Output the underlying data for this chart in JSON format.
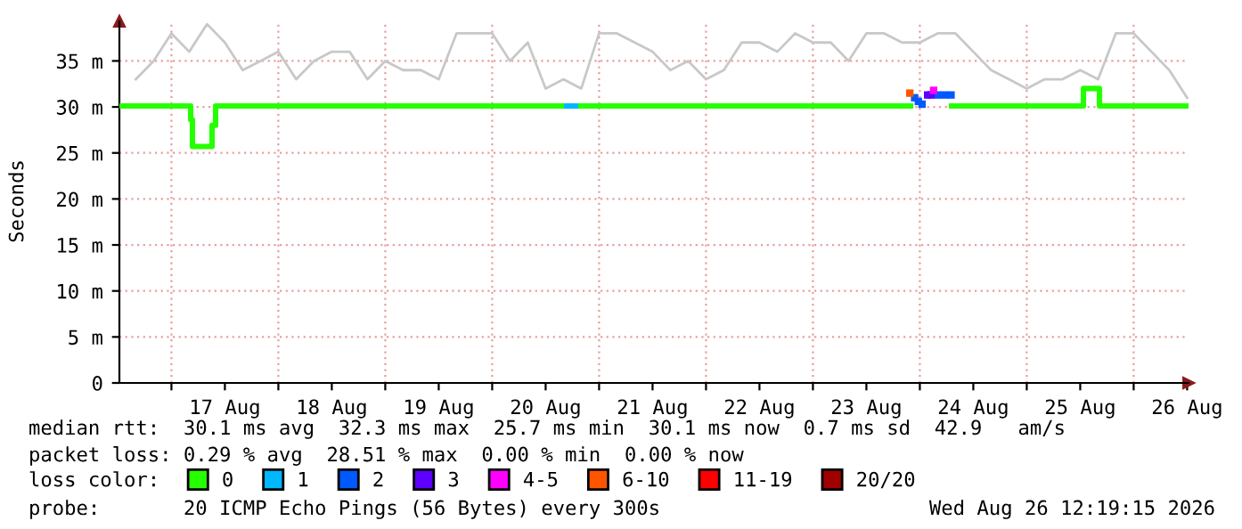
{
  "chart_data": {
    "type": "step",
    "ylabel": "Seconds",
    "xlim": [
      "2026-08-16T12:19",
      "2026-08-26T12:19"
    ],
    "xticks": [
      {
        "value": "2026-08-17T00:00",
        "label": null
      },
      {
        "value": "2026-08-17T12:00",
        "label": "17 Aug"
      },
      {
        "value": "2026-08-18T00:00",
        "label": null
      },
      {
        "value": "2026-08-18T12:00",
        "label": "18 Aug"
      },
      {
        "value": "2026-08-19T00:00",
        "label": null
      },
      {
        "value": "2026-08-19T12:00",
        "label": "19 Aug"
      },
      {
        "value": "2026-08-20T00:00",
        "label": null
      },
      {
        "value": "2026-08-20T12:00",
        "label": "20 Aug"
      },
      {
        "value": "2026-08-21T00:00",
        "label": null
      },
      {
        "value": "2026-08-21T12:00",
        "label": "21 Aug"
      },
      {
        "value": "2026-08-22T00:00",
        "label": null
      },
      {
        "value": "2026-08-22T12:00",
        "label": "22 Aug"
      },
      {
        "value": "2026-08-23T00:00",
        "label": null
      },
      {
        "value": "2026-08-23T12:00",
        "label": "23 Aug"
      },
      {
        "value": "2026-08-24T00:00",
        "label": null
      },
      {
        "value": "2026-08-24T12:00",
        "label": "24 Aug"
      },
      {
        "value": "2026-08-25T00:00",
        "label": null
      },
      {
        "value": "2026-08-25T12:00",
        "label": "25 Aug"
      },
      {
        "value": "2026-08-26T00:00",
        "label": null
      },
      {
        "value": "2026-08-26T12:00",
        "label": "26 Aug"
      }
    ],
    "ylim": [
      0,
      39.3
    ],
    "yticks": [
      0,
      {
        "value": 5,
        "label": "5 m"
      },
      {
        "value": 10,
        "label": "10 m"
      },
      {
        "value": 15,
        "label": "15 m"
      },
      {
        "value": 20,
        "label": "20 m"
      },
      {
        "value": 25,
        "label": "25 m"
      },
      {
        "value": 30,
        "label": "30 m"
      },
      {
        "value": 35,
        "label": "35 m"
      }
    ],
    "grid": true,
    "legend": "bottom",
    "legend_title": "loss color:",
    "series": [
      {
        "type": "line",
        "color": "#c8c8c8",
        "x": [
          "2026-08-16T16:00",
          "2026-08-16T20:00",
          "2026-08-17T00:00",
          "2026-08-17T04:00",
          "2026-08-17T08:00",
          "2026-08-17T12:00",
          "2026-08-17T16:00",
          "2026-08-17T20:00",
          "2026-08-18T00:00",
          "2026-08-18T04:00",
          "2026-08-18T08:00",
          "2026-08-18T12:00",
          "2026-08-18T16:00",
          "2026-08-18T20:00",
          "2026-08-19T00:00",
          "2026-08-19T04:00",
          "2026-08-19T08:00",
          "2026-08-19T12:00",
          "2026-08-19T16:00",
          "2026-08-19T20:00",
          "2026-08-20T00:00",
          "2026-08-20T04:00",
          "2026-08-20T08:00",
          "2026-08-20T12:00",
          "2026-08-20T16:00",
          "2026-08-20T20:00",
          "2026-08-21T00:00",
          "2026-08-21T04:00",
          "2026-08-21T08:00",
          "2026-08-21T12:00",
          "2026-08-21T16:00",
          "2026-08-21T20:00",
          "2026-08-22T00:00",
          "2026-08-22T04:00",
          "2026-08-22T08:00",
          "2026-08-22T12:00",
          "2026-08-22T16:00",
          "2026-08-22T20:00",
          "2026-08-23T00:00",
          "2026-08-23T04:00",
          "2026-08-23T08:00",
          "2026-08-23T12:00",
          "2026-08-23T16:00",
          "2026-08-23T20:00",
          "2026-08-24T00:00",
          "2026-08-24T04:00",
          "2026-08-24T08:00",
          "2026-08-24T12:00",
          "2026-08-24T16:00",
          "2026-08-24T20:00",
          "2026-08-25T00:00",
          "2026-08-25T04:00",
          "2026-08-25T08:00",
          "2026-08-25T12:00",
          "2026-08-25T16:00",
          "2026-08-25T20:00",
          "2026-08-26T00:00",
          "2026-08-26T04:00",
          "2026-08-26T08:00",
          "2026-08-26T12:00"
        ],
        "values": [
          33,
          35,
          38,
          36,
          39,
          37,
          34,
          35,
          36,
          33,
          35,
          36,
          36,
          33,
          35,
          34,
          34,
          33,
          38,
          38,
          38,
          35,
          37,
          32,
          33,
          32,
          38,
          38,
          37,
          36,
          34,
          35,
          33,
          34,
          37,
          37,
          36,
          38,
          37,
          37,
          35,
          38,
          38,
          37,
          37,
          38,
          38,
          36,
          34,
          33,
          32,
          33,
          33,
          34,
          33,
          38,
          38,
          36,
          34,
          31
        ]
      },
      {
        "name": "0",
        "color": "#26ff00",
        "x": [
          "2026-08-16T12:19",
          "2026-08-17T04:19",
          "2026-08-17T04:43",
          "2026-08-17T09:07",
          "2026-08-17T09:55",
          "2026-08-20T16:43",
          "2026-08-20T18:43",
          "2026-08-23T21:55",
          "2026-08-24T07:07",
          "2026-08-25T12:43",
          "2026-08-25T16:19",
          "2026-08-26T12:19"
        ],
        "values": [
          30.1,
          28.6,
          25.7,
          28.0,
          30.1,
          null,
          30.1,
          null,
          30.1,
          32.0,
          30.1,
          30.1
        ]
      },
      {
        "name": "1",
        "color": "#00b8ff",
        "x": [
          "2026-08-20T16:43",
          "2026-08-20T18:43"
        ],
        "values": [
          30.1,
          30.1
        ]
      },
      {
        "name": "2",
        "color": "#0059ff",
        "type": "scatter",
        "x": [
          "2026-08-23T22:50",
          "2026-08-23T23:40",
          "2026-08-24T00:30",
          "2026-08-24T04:00",
          "2026-08-24T05:30",
          "2026-08-24T07:00"
        ],
        "values": [
          31.0,
          30.6,
          30.3,
          31.3,
          31.3,
          31.3
        ]
      },
      {
        "name": "3",
        "color": "#5e00ff",
        "type": "scatter",
        "x": [
          "2026-08-24T01:45",
          "2026-08-24T02:30"
        ],
        "values": [
          31.3,
          31.3
        ]
      },
      {
        "name": "4-5",
        "color": "#ff00ff",
        "type": "scatter",
        "x": [
          "2026-08-24T03:05"
        ],
        "values": [
          31.8
        ]
      },
      {
        "name": "6-10",
        "color": "#ff5500",
        "type": "scatter",
        "x": [
          "2026-08-23T21:45"
        ],
        "values": [
          31.5
        ]
      },
      {
        "name": "11-19",
        "color": "#ff0000"
      },
      {
        "name": "20/20",
        "color": "#a10000"
      }
    ],
    "annotations": [
      "median rtt:  30.1 ms avg  32.3 ms max  25.7 ms min  30.1 ms now  0.7 ms sd  42.9   am/s",
      "packet loss: 0.29 % avg  28.51 % max  0.00 % min  0.00 % now",
      "probe:       20 ICMP Echo Pings (56 Bytes) every 300s",
      "Wed Aug 26 12:19:15 2026"
    ]
  }
}
